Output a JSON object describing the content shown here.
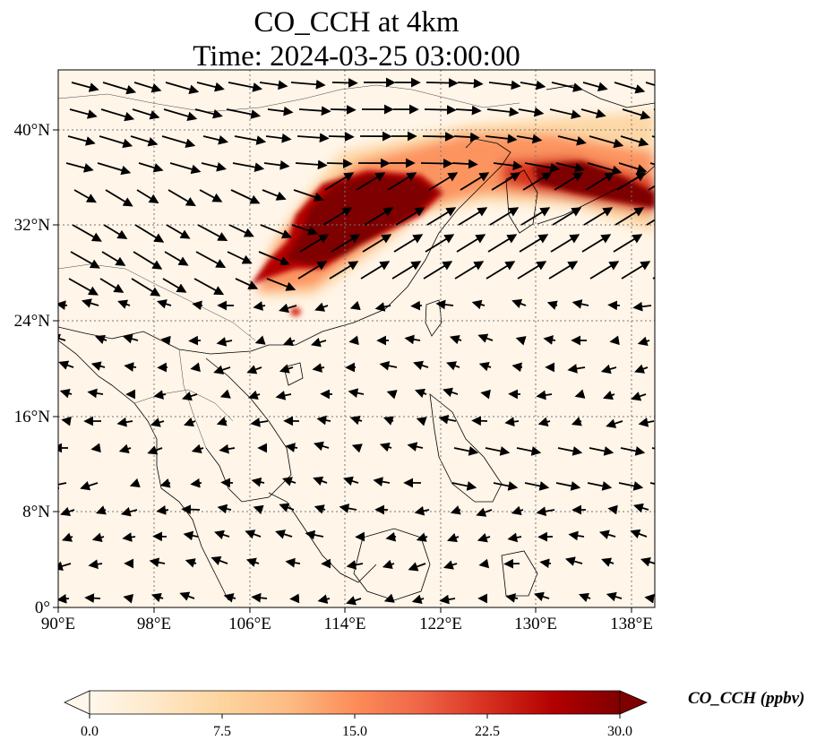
{
  "figure": {
    "title_line1": "CO_CCH at 4km",
    "title_line2": "Time: 2024-03-25 03:00:00"
  },
  "map": {
    "lon_range": [
      90,
      140
    ],
    "lat_range": [
      0,
      45
    ],
    "lon_ticks": [
      "90°E",
      "98°E",
      "106°E",
      "114°E",
      "122°E",
      "130°E",
      "138°E"
    ],
    "lat_ticks": [
      "0°",
      "8°N",
      "16°N",
      "24°N",
      "32°N",
      "40°N"
    ],
    "gridlines": true,
    "field_name": "CO_CCH",
    "plume_color": "#7f0000",
    "background_color": "#fff5e8"
  },
  "colorbar": {
    "label": "CO_CCH (ppbv)",
    "ticks": [
      "0.0",
      "7.5",
      "15.0",
      "22.5",
      "30.0"
    ],
    "min": 0,
    "max": 30,
    "colormap": [
      "#fff7ec",
      "#fee8c8",
      "#fdd49e",
      "#fdbb84",
      "#fc8d59",
      "#ef6548",
      "#d7301f",
      "#b30000",
      "#7f0000"
    ],
    "extend": "both"
  }
}
